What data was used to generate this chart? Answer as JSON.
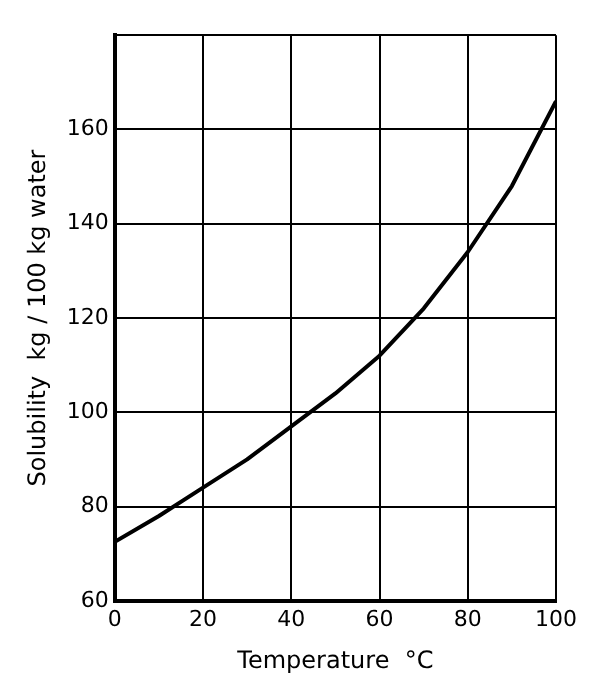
{
  "chart_data": {
    "type": "line",
    "xlabel": "Temperature  °C",
    "ylabel": "Solubility  kg / 100 kg water",
    "x": [
      0,
      10,
      20,
      30,
      40,
      50,
      60,
      70,
      80,
      90,
      100
    ],
    "series": [
      {
        "color": "#000000",
        "values": [
          72.5,
          78,
          84,
          90,
          97,
          104,
          112,
          122,
          134,
          148,
          166
        ]
      }
    ],
    "xlim": [
      0,
      100
    ],
    "xticks": [
      0,
      20,
      40,
      60,
      80,
      100
    ],
    "ylim": [
      60,
      180
    ],
    "yticks": [
      60,
      80,
      100,
      120,
      140,
      160,
      {
        "value": 180,
        "label": null
      }
    ],
    "grid": true,
    "marker": "none",
    "line_style": "solid",
    "legend": false
  }
}
